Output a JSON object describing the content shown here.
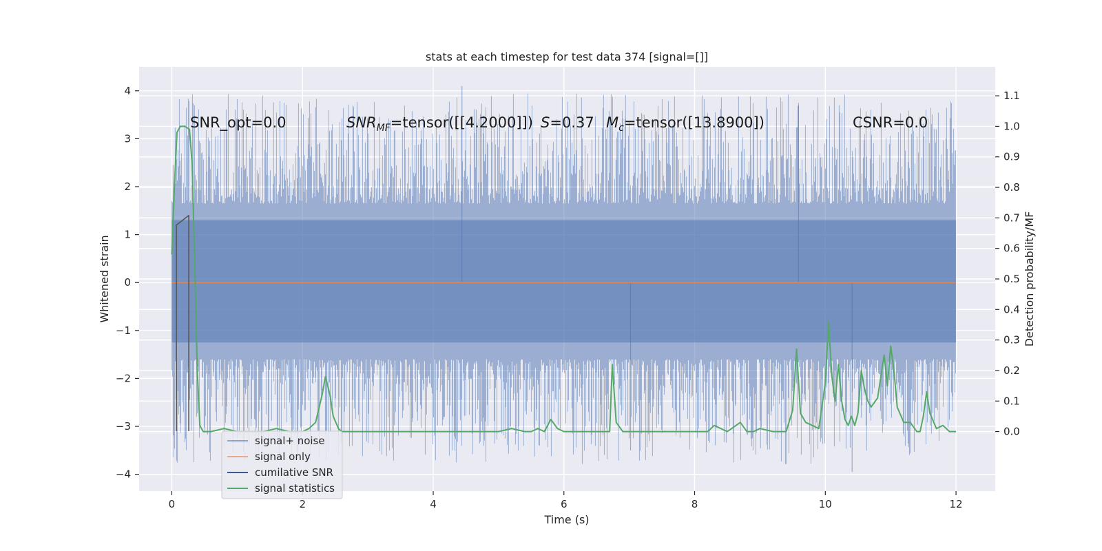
{
  "chart_data": {
    "type": "line",
    "title": "stats at each timestep for test data 374 [signal=[]]",
    "xlabel": "Time (s)",
    "ylabel": "Whitened strain",
    "y2label": "Detection probability/MF",
    "xlim": [
      -0.5,
      12.6
    ],
    "ylim": [
      -4.35,
      4.5
    ],
    "y2lim": [
      -0.195,
      1.195
    ],
    "grid": true,
    "xticks": [
      0,
      2,
      4,
      6,
      8,
      10,
      12
    ],
    "xtick_labels": [
      "0",
      "2",
      "4",
      "6",
      "8",
      "10",
      "12"
    ],
    "yticks": [
      4,
      3,
      2,
      1,
      0,
      -1,
      -2,
      -3,
      -4
    ],
    "ytick_labels": [
      "4",
      "3",
      "2",
      "1",
      "0",
      "−1",
      "−2",
      "−3",
      "−4"
    ],
    "y2ticks": [
      1.1,
      1.0,
      0.9,
      0.8,
      0.7,
      0.6,
      0.5,
      0.4,
      0.3,
      0.2,
      0.1,
      0.0
    ],
    "y2tick_labels": [
      "1.1",
      "1.0",
      "0.9",
      "0.8",
      "0.7",
      "0.6",
      "0.5",
      "0.4",
      "0.3",
      "0.2",
      "0.1",
      "0.0"
    ],
    "annotations": {
      "snr_opt": "SNR_opt=0.0",
      "snr_mf_prefix": "SNR",
      "snr_mf_sub": "MF",
      "snr_mf_value": "=tensor([[4.2000]])",
      "s_symbol": "S",
      "s_value": "=0.37",
      "mc_symbol": "M",
      "mc_sub": "c",
      "mc_value": "=tensor([13.8900])",
      "csnr": "CSNR=0.0"
    },
    "series": [
      {
        "name": "signal+ noise",
        "color": "#4c72b0",
        "kind": "dense_noise",
        "x_range": [
          0,
          12
        ],
        "core_band": [
          -1.25,
          1.3
        ],
        "max": 4.1,
        "min": -3.95
      },
      {
        "name": "signal only",
        "color": "#dd8452",
        "x": [
          0,
          12
        ],
        "y": [
          0,
          0
        ]
      },
      {
        "name": "cumilative SNR",
        "color": "#1f3a6e",
        "x": [
          0.07,
          0.07,
          0.26,
          0.26
        ],
        "y": [
          -3.1,
          1.2,
          1.4,
          -3.1
        ]
      },
      {
        "name": "signal statistics",
        "color": "#55a868",
        "axis": "right",
        "x": [
          0.0,
          0.04,
          0.08,
          0.13,
          0.2,
          0.27,
          0.31,
          0.35,
          0.39,
          0.43,
          0.48,
          0.6,
          0.8,
          1.0,
          1.2,
          1.4,
          1.6,
          1.8,
          2.0,
          2.1,
          2.2,
          2.3,
          2.35,
          2.42,
          2.47,
          2.55,
          2.6,
          2.7,
          2.9,
          3.2,
          3.6,
          4.0,
          4.5,
          5.0,
          5.2,
          5.4,
          5.5,
          5.6,
          5.7,
          5.8,
          5.9,
          6.0,
          6.2,
          6.4,
          6.6,
          6.7,
          6.74,
          6.8,
          6.9,
          7.0,
          7.1,
          7.3,
          7.6,
          7.9,
          8.2,
          8.3,
          8.5,
          8.7,
          8.8,
          8.9,
          9.0,
          9.2,
          9.4,
          9.5,
          9.56,
          9.62,
          9.7,
          9.8,
          9.9,
          10.0,
          10.05,
          10.1,
          10.15,
          10.2,
          10.25,
          10.3,
          10.35,
          10.4,
          10.45,
          10.5,
          10.55,
          10.6,
          10.65,
          10.7,
          10.8,
          10.9,
          10.95,
          11.0,
          11.05,
          11.1,
          11.2,
          11.3,
          11.4,
          11.45,
          11.5,
          11.55,
          11.6,
          11.7,
          11.8,
          11.9,
          12.0
        ],
        "y": [
          0.58,
          0.8,
          0.98,
          1.0,
          1.0,
          0.99,
          0.88,
          0.55,
          0.2,
          0.02,
          0.0,
          0.0,
          0.01,
          0.0,
          0.0,
          0.0,
          0.01,
          0.0,
          0.0,
          0.01,
          0.03,
          0.12,
          0.18,
          0.12,
          0.05,
          0.01,
          0.0,
          0.0,
          0.0,
          0.0,
          0.0,
          0.0,
          0.0,
          0.0,
          0.01,
          0.0,
          0.0,
          0.01,
          0.0,
          0.04,
          0.01,
          0.0,
          0.0,
          0.0,
          0.0,
          0.0,
          0.22,
          0.03,
          0.0,
          0.0,
          0.0,
          0.0,
          0.0,
          0.0,
          0.0,
          0.02,
          0.0,
          0.03,
          0.0,
          0.0,
          0.01,
          0.0,
          0.0,
          0.07,
          0.27,
          0.06,
          0.03,
          0.02,
          0.01,
          0.16,
          0.36,
          0.18,
          0.1,
          0.22,
          0.1,
          0.04,
          0.02,
          0.05,
          0.02,
          0.06,
          0.2,
          0.14,
          0.1,
          0.08,
          0.11,
          0.25,
          0.15,
          0.28,
          0.2,
          0.08,
          0.03,
          0.03,
          0.0,
          0.0,
          0.05,
          0.13,
          0.06,
          0.01,
          0.02,
          0.0,
          0.0
        ]
      }
    ],
    "legend": {
      "placement": "lower-left",
      "entries": [
        "signal+ noise",
        "signal only",
        "cumilative SNR",
        "signal statistics"
      ]
    }
  }
}
